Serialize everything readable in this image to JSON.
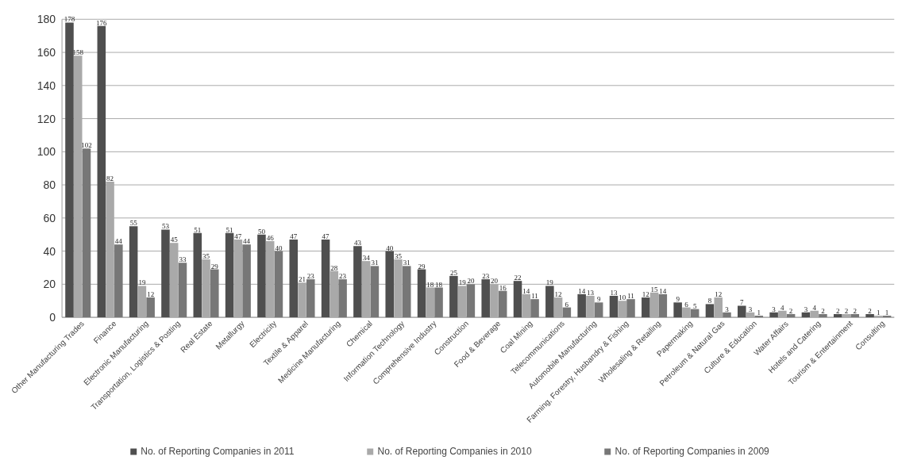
{
  "chart_data": {
    "type": "bar",
    "categories": [
      "Other Manufacturing Trades",
      "Finance",
      "Electronic Manufacturing",
      "Transportation, Logistics & Posting",
      "Real Estate",
      "Metallurgy",
      "Electricity",
      "Textile & Apparel",
      "Medicine Manufacturing",
      "Chemical",
      "Information Technology",
      "Comprehensive Industry",
      "Construction",
      "Food & Beverage",
      "Coal Mining",
      "Telecommunications",
      "Automobile Manufacturing",
      "Farming, Forestry, Husbandry & Fishing",
      "Wholesaling & Retailing",
      "Papermaking",
      "Petroleum & Natural Gas",
      "Culture & Education",
      "Water Affairs",
      "Hotels and Catering",
      "Tourism & Entertainment",
      "Consulting"
    ],
    "series": [
      {
        "name": "No. of Reporting Companies in 2011",
        "color": "#4f4f4f",
        "values": [
          178,
          176,
          55,
          53,
          51,
          51,
          50,
          47,
          47,
          43,
          40,
          29,
          25,
          23,
          22,
          19,
          14,
          13,
          12,
          9,
          8,
          7,
          3,
          3,
          2,
          2
        ]
      },
      {
        "name": "No. of Reporting Companies in 2010",
        "color": "#a9a9a9",
        "values": [
          158,
          82,
          19,
          45,
          35,
          47,
          46,
          21,
          28,
          34,
          35,
          18,
          19,
          20,
          14,
          12,
          13,
          10,
          15,
          6,
          12,
          3,
          4,
          4,
          2,
          1
        ]
      },
      {
        "name": "No. of Reporting Companies in 2009",
        "color": "#777777",
        "values": [
          102,
          44,
          12,
          33,
          29,
          44,
          40,
          23,
          23,
          31,
          31,
          18,
          20,
          16,
          11,
          6,
          9,
          11,
          14,
          5,
          3,
          1,
          2,
          2,
          2,
          1
        ]
      }
    ],
    "ylim": [
      0,
      180
    ],
    "yticks": [
      0,
      20,
      40,
      60,
      80,
      100,
      120,
      140,
      160,
      180
    ],
    "grid": "y",
    "data_labels": true,
    "legend": "bottom"
  }
}
